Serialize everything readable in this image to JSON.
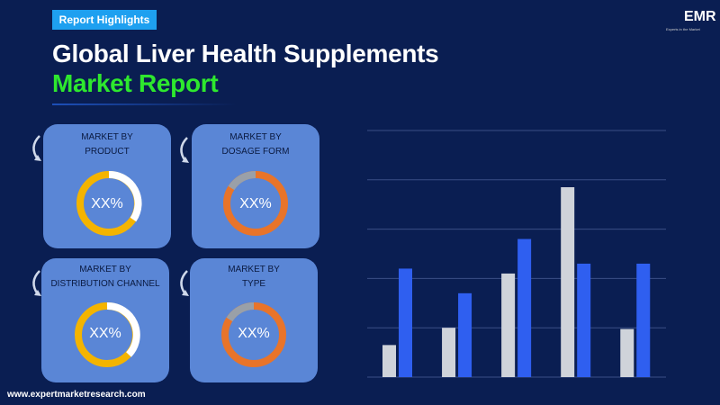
{
  "header": {
    "badge": "Report Highlights",
    "title_line1": "Global Liver Health Supplements",
    "title_line2": "Market Report"
  },
  "logo": {
    "text": "EMR",
    "tagline": "Experts in the Market"
  },
  "cards": [
    {
      "line1": "MARKET BY",
      "line2": "PRODUCT",
      "value": "XX%",
      "ring_color": "#f4b400"
    },
    {
      "line1": "MARKET BY",
      "line2": "DOSAGE FORM",
      "value": "XX%",
      "ring_color": "#e8742a"
    },
    {
      "line1": "MARKET BY",
      "line2": "DISTRIBUTION CHANNEL",
      "value": "XX%",
      "ring_color": "#f4b400"
    },
    {
      "line1": "MARKET BY",
      "line2": "TYPE",
      "value": "XX%",
      "ring_color": "#e8742a"
    }
  ],
  "footer": {
    "url": "www.expertmarketresearch.com"
  },
  "chart_data": {
    "type": "bar",
    "categories": [
      "",
      "",
      "",
      "",
      ""
    ],
    "series": [
      {
        "values": [
          13,
          20,
          42,
          77,
          19.5
        ],
        "color": "#cfd3da"
      },
      {
        "values": [
          44,
          34,
          56,
          46,
          46
        ],
        "color": "#2f5ff0"
      }
    ],
    "ylim": [
      0,
      100
    ],
    "grid": true,
    "legend": "none"
  }
}
